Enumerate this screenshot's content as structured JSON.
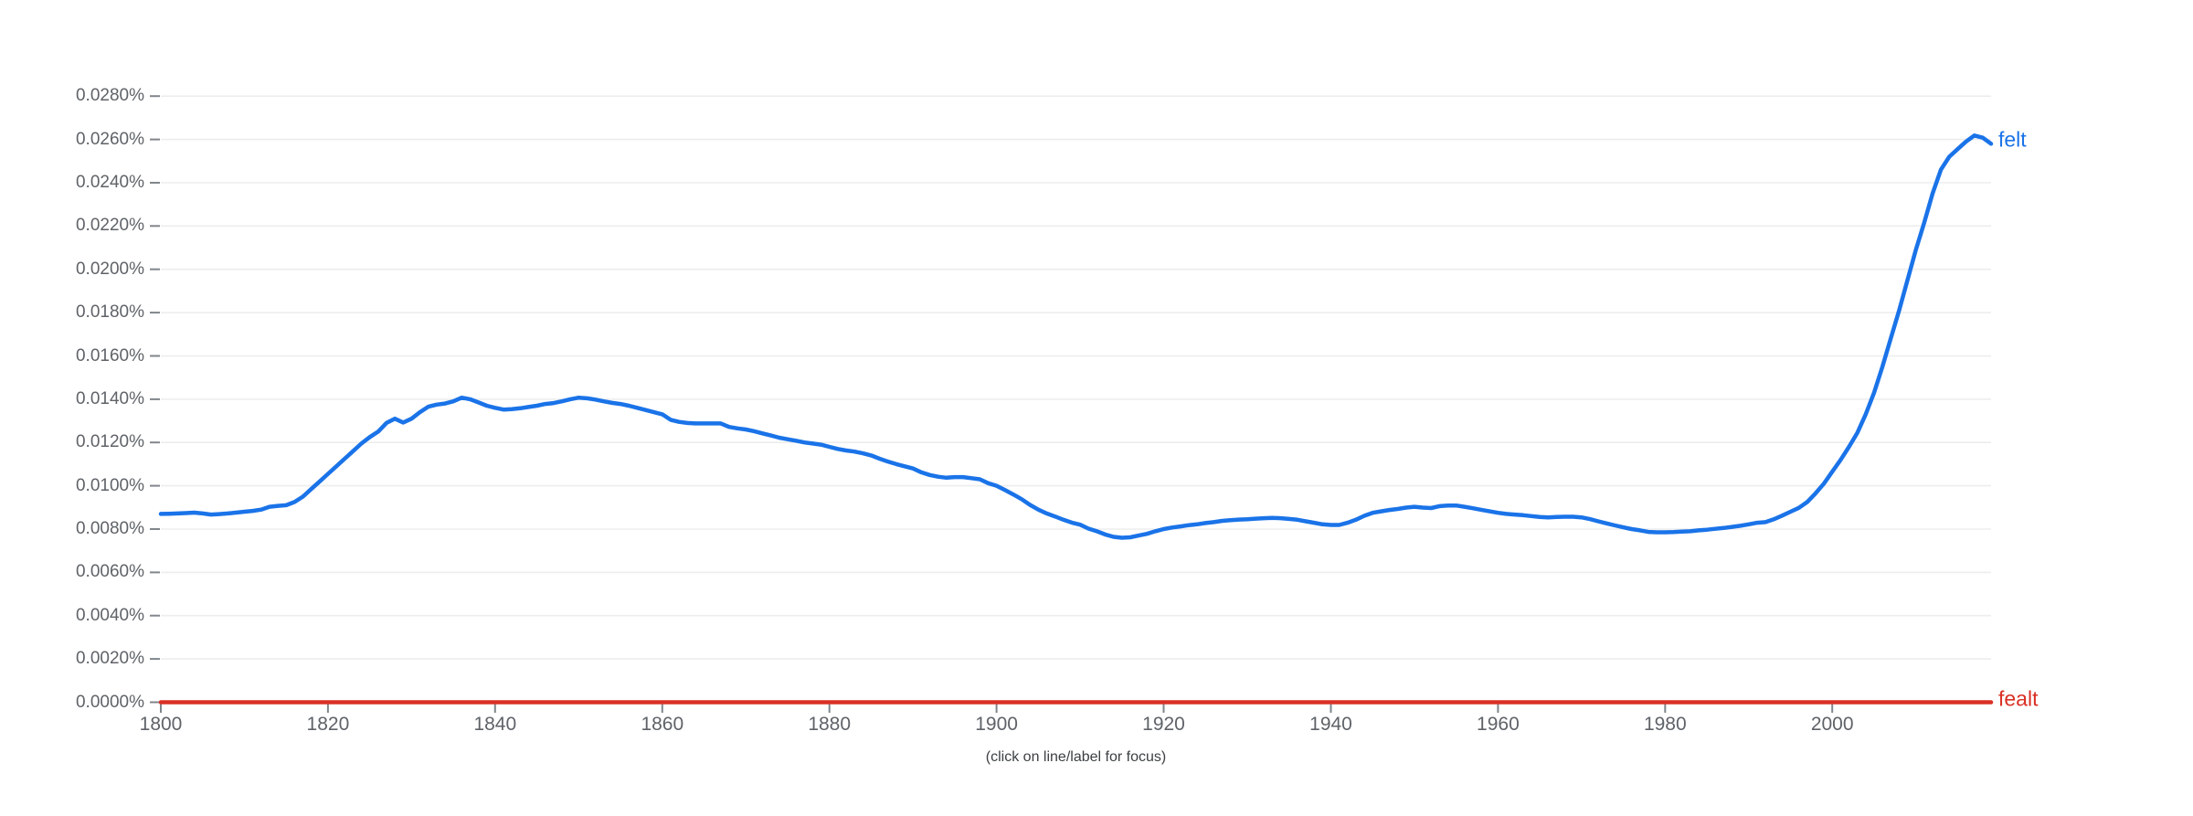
{
  "chart_data": {
    "type": "line",
    "title": "",
    "xlabel": "",
    "ylabel": "",
    "caption": "(click on line/label for focus)",
    "grid": "horizontal",
    "legend_position": "line-end-labels",
    "xlim": [
      1800,
      2019
    ],
    "ylim_pct": [
      0,
      0.028
    ],
    "x_ticks": [
      {
        "label": "1800",
        "year": 1800
      },
      {
        "label": "1820",
        "year": 1820
      },
      {
        "label": "1840",
        "year": 1840
      },
      {
        "label": "1860",
        "year": 1860
      },
      {
        "label": "1880",
        "year": 1880
      },
      {
        "label": "1900",
        "year": 1900
      },
      {
        "label": "1920",
        "year": 1920
      },
      {
        "label": "1940",
        "year": 1940
      },
      {
        "label": "1960",
        "year": 1960
      },
      {
        "label": "1980",
        "year": 1980
      },
      {
        "label": "2000",
        "year": 2000
      }
    ],
    "y_ticks": [
      {
        "label": "0.0280%",
        "pct": 0.028
      },
      {
        "label": "0.0260%",
        "pct": 0.026
      },
      {
        "label": "0.0240%",
        "pct": 0.024
      },
      {
        "label": "0.0220%",
        "pct": 0.022
      },
      {
        "label": "0.0200%",
        "pct": 0.02
      },
      {
        "label": "0.0180%",
        "pct": 0.018
      },
      {
        "label": "0.0160%",
        "pct": 0.016
      },
      {
        "label": "0.0140%",
        "pct": 0.014
      },
      {
        "label": "0.0120%",
        "pct": 0.012
      },
      {
        "label": "0.0100%",
        "pct": 0.01
      },
      {
        "label": "0.0080%",
        "pct": 0.008
      },
      {
        "label": "0.0060%",
        "pct": 0.006
      },
      {
        "label": "0.0040%",
        "pct": 0.004
      },
      {
        "label": "0.0020%",
        "pct": 0.002
      },
      {
        "label": "0.0000%",
        "pct": 0.0
      }
    ],
    "series": [
      {
        "name": "felt",
        "color": "#1a73e8",
        "start_year": 1800,
        "end_year": 2019,
        "values_pct": [
          0.0087,
          0.00871,
          0.00872,
          0.00874,
          0.00876,
          0.00872,
          0.00867,
          0.00869,
          0.00872,
          0.00876,
          0.0088,
          0.00884,
          0.0089,
          0.00903,
          0.00907,
          0.0091,
          0.00925,
          0.0095,
          0.00985,
          0.0102,
          0.01055,
          0.0109,
          0.01125,
          0.0116,
          0.01195,
          0.01225,
          0.0125,
          0.0129,
          0.0131,
          0.01292,
          0.0131,
          0.0134,
          0.01365,
          0.01375,
          0.0138,
          0.0139,
          0.01407,
          0.014,
          0.01385,
          0.0137,
          0.0136,
          0.01352,
          0.01354,
          0.01358,
          0.01364,
          0.0137,
          0.01378,
          0.01382,
          0.0139,
          0.014,
          0.01407,
          0.01404,
          0.01398,
          0.0139,
          0.01383,
          0.01378,
          0.0137,
          0.0136,
          0.0135,
          0.0134,
          0.0133,
          0.01305,
          0.01295,
          0.0129,
          0.01288,
          0.01288,
          0.01288,
          0.01288,
          0.01272,
          0.01265,
          0.0126,
          0.01252,
          0.01242,
          0.01232,
          0.01222,
          0.01215,
          0.01208,
          0.012,
          0.01195,
          0.0119,
          0.0118,
          0.0117,
          0.01163,
          0.01158,
          0.0115,
          0.0114,
          0.01125,
          0.01112,
          0.011,
          0.0109,
          0.0108,
          0.01062,
          0.0105,
          0.01042,
          0.01037,
          0.0104,
          0.0104,
          0.01035,
          0.0103,
          0.01012,
          0.01,
          0.0098,
          0.0096,
          0.00938,
          0.00912,
          0.0089,
          0.00872,
          0.00858,
          0.00843,
          0.0083,
          0.0082,
          0.00802,
          0.0079,
          0.00775,
          0.00764,
          0.0076,
          0.00762,
          0.0077,
          0.00778,
          0.0079,
          0.008,
          0.00807,
          0.00812,
          0.00818,
          0.00822,
          0.00828,
          0.00832,
          0.00838,
          0.00841,
          0.00844,
          0.00845,
          0.00848,
          0.0085,
          0.00852,
          0.0085,
          0.00847,
          0.00843,
          0.00836,
          0.00829,
          0.00822,
          0.00819,
          0.00819,
          0.00829,
          0.00843,
          0.00861,
          0.00875,
          0.00882,
          0.00888,
          0.00893,
          0.00899,
          0.00903,
          0.00899,
          0.00897,
          0.00906,
          0.00909,
          0.00909,
          0.00903,
          0.00896,
          0.00889,
          0.00882,
          0.00875,
          0.0087,
          0.00867,
          0.00864,
          0.0086,
          0.00856,
          0.00854,
          0.00856,
          0.00857,
          0.00857,
          0.00854,
          0.00846,
          0.00836,
          0.00826,
          0.00817,
          0.00808,
          0.008,
          0.00794,
          0.00787,
          0.00785,
          0.00785,
          0.00786,
          0.00788,
          0.0079,
          0.00794,
          0.00797,
          0.00801,
          0.00805,
          0.0081,
          0.00815,
          0.00822,
          0.00829,
          0.00832,
          0.00845,
          0.00862,
          0.0088,
          0.00898,
          0.00925,
          0.00965,
          0.0101,
          0.01065,
          0.0112,
          0.0118,
          0.01245,
          0.0133,
          0.0143,
          0.0155,
          0.0168,
          0.0181,
          0.0195,
          0.0209,
          0.02215,
          0.0235,
          0.0246,
          0.0252,
          0.02555,
          0.0259,
          0.02618,
          0.02608,
          0.0258
        ]
      },
      {
        "name": "fealt",
        "color": "#d93025",
        "start_year": 1800,
        "end_year": 2019,
        "constant_pct": 0.0
      }
    ]
  }
}
